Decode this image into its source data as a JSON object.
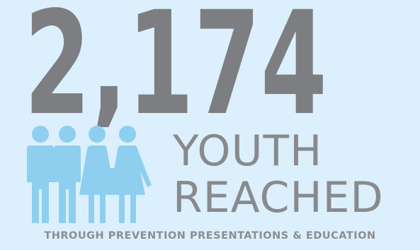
{
  "stat": {
    "value": "2,174",
    "headline_line1": "YOUTH",
    "headline_line2": "REACHED",
    "subtitle": "THROUGH PREVENTION PRESENTATIONS & EDUCATION"
  },
  "icon": "youth-group-icon",
  "colors": {
    "background": "#DBF0FC",
    "number": "#7D7E81",
    "headline": "#898A8D",
    "figures": "#8ECFF0",
    "subtitle": "#8C8D90"
  }
}
